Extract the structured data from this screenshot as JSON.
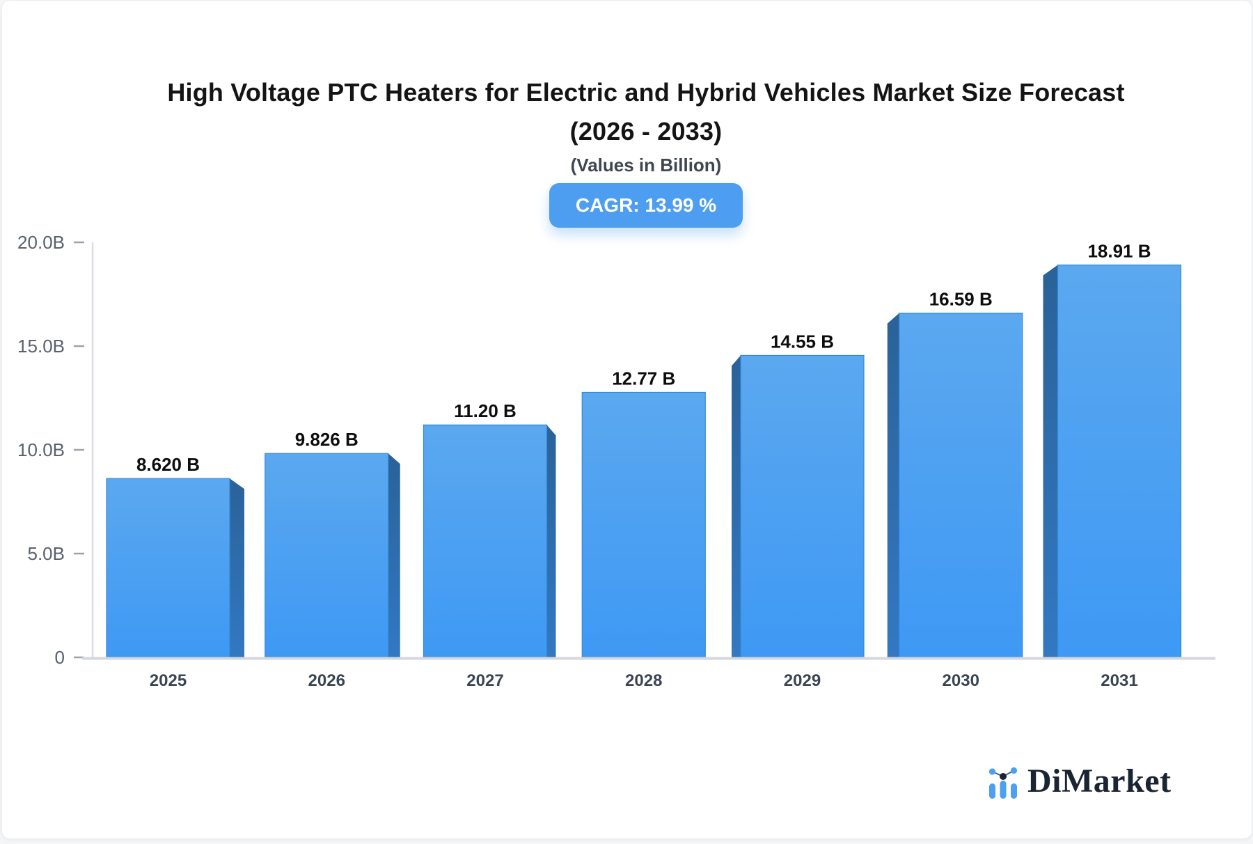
{
  "header": {
    "title_line1": "High Voltage PTC Heaters for Electric and Hybrid Vehicles Market Size Forecast",
    "title_line2": "(2026 - 2033)",
    "subtitle": "(Values in Billion)",
    "cagr_badge": "CAGR: 13.99 %"
  },
  "chart_data": {
    "type": "bar",
    "title": "High Voltage PTC Heaters for Electric and Hybrid Vehicles Market Size Forecast (2026 - 2033)",
    "subtitle": "(Values in Billion)",
    "cagr_percent": 13.99,
    "unit": "Billion",
    "categories": [
      "2025",
      "2026",
      "2027",
      "2028",
      "2029",
      "2030",
      "2031"
    ],
    "values": [
      8.62,
      9.826,
      11.2,
      12.77,
      14.55,
      16.59,
      18.91
    ],
    "value_labels": [
      "8.620 B",
      "9.826 B",
      "11.20 B",
      "12.77 B",
      "14.55 B",
      "16.59 B",
      "18.91 B"
    ],
    "ylim": [
      0,
      20
    ],
    "grid": false,
    "legend": "none",
    "y_axis": {
      "ticks": [
        {
          "value": 20,
          "label": "20.0B"
        },
        {
          "value": 15,
          "label": "15.0B"
        },
        {
          "value": 10,
          "label": "10.0B"
        },
        {
          "value": 5,
          "label": "5.0B"
        },
        {
          "value": 0,
          "label": "0"
        }
      ]
    }
  },
  "footer": {
    "brand": "DiMarket"
  },
  "colors": {
    "accent": "#4d9ef0",
    "bar_face_top": "#5ba8ef",
    "bar_face_bottom": "#3e99f4",
    "bar_side_top": "#2a6298",
    "bar_side_bottom": "#3278c2",
    "bar_stroke": "#338ad9",
    "axis_line": "#d4d7dc",
    "axis_vline": "#dadde2",
    "tick": "#9aa2ae",
    "axis_label": "#59616e",
    "year_label": "#3a4554",
    "value_label": "#0d0d0d",
    "brand_blue": "#4d9ff0",
    "brand_navy": "#1b2433"
  }
}
